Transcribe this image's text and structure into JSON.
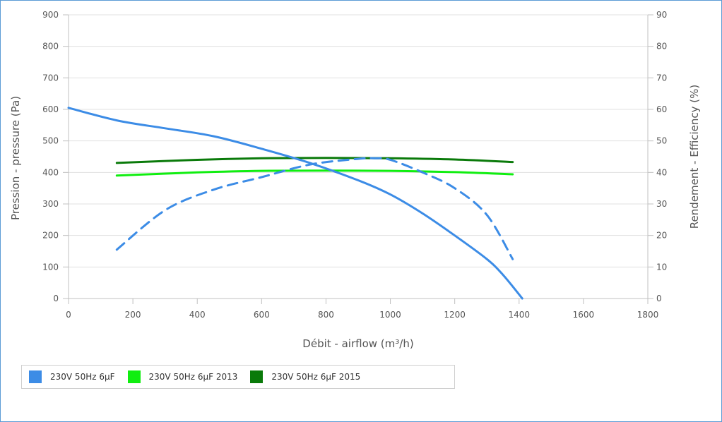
{
  "chart_data": {
    "type": "line",
    "title": "",
    "xlabel": "Débit - airflow (m³/h)",
    "ylabel_left": "Pression - pressure (Pa)",
    "ylabel_right": "Rendement - Efficiency (%)",
    "xlim": [
      0,
      1800
    ],
    "ylim_left": [
      0,
      900
    ],
    "ylim_right": [
      0,
      90
    ],
    "xticks": [
      0,
      200,
      400,
      600,
      800,
      1000,
      1200,
      1400,
      1600,
      1800
    ],
    "yticks_left": [
      0,
      100,
      200,
      300,
      400,
      500,
      600,
      700,
      800,
      900
    ],
    "yticks_right": [
      0,
      10,
      20,
      30,
      40,
      50,
      60,
      70,
      80,
      90
    ],
    "grid": true,
    "legend_position": "bottom-left",
    "series": [
      {
        "name": "230V 50Hz 6µF",
        "color": "#3c8ce6",
        "axis": "left",
        "dash": false,
        "x": [
          0,
          150,
          300,
          450,
          600,
          750,
          900,
          1000,
          1100,
          1200,
          1300,
          1350,
          1410
        ],
        "y": [
          605,
          565,
          540,
          515,
          475,
          430,
          375,
          330,
          270,
          200,
          125,
          75,
          0
        ]
      },
      {
        "name": "230V 50Hz 6µF",
        "color": "#3c8ce6",
        "axis": "right",
        "dash": true,
        "x": [
          150,
          300,
          450,
          600,
          750,
          900,
          950,
          1000,
          1100,
          1200,
          1300,
          1380
        ],
        "y": [
          15.5,
          28,
          34.5,
          38.5,
          42.5,
          44.3,
          44.5,
          44,
          40,
          35,
          26.5,
          12.5
        ]
      },
      {
        "name": "230V 50Hz 6µF 2013",
        "color": "#10ee10",
        "axis": "left",
        "dash": false,
        "x": [
          150,
          400,
          600,
          800,
          1000,
          1200,
          1380
        ],
        "y": [
          390,
          400,
          405,
          406,
          405,
          401,
          394
        ]
      },
      {
        "name": "230V 50Hz 6µF 2015",
        "color": "#0a7a0a",
        "axis": "left",
        "dash": false,
        "x": [
          150,
          400,
          600,
          800,
          1000,
          1200,
          1380
        ],
        "y": [
          430,
          440,
          445,
          446,
          445,
          441,
          433
        ]
      }
    ]
  },
  "legend": {
    "items": [
      {
        "label": "230V 50Hz 6µF",
        "color": "#3c8ce6"
      },
      {
        "label": "230V 50Hz 6µF 2013",
        "color": "#10ee10"
      },
      {
        "label": "230V 50Hz 6µF 2015",
        "color": "#0a7a0a"
      }
    ]
  }
}
